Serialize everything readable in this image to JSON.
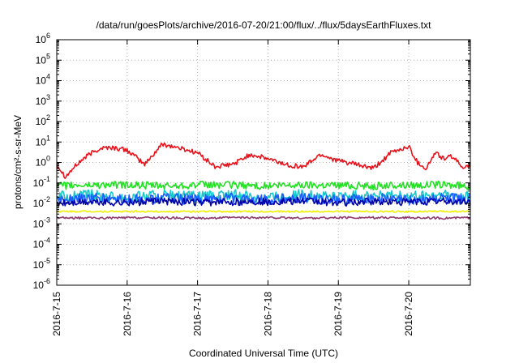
{
  "chart_data": {
    "type": "line",
    "title": "/data/run/goesPlots/archive/2016-07-20/21:00/flux/../flux/5daysEarthFluxes.txt",
    "xlabel": "Coordinated Universal Time (UTC)",
    "ylabel": "protons/cm²-s-sr-MeV",
    "y_scale": "log",
    "ylim": [
      "1e-6",
      "1e6"
    ],
    "y_ticks": [
      {
        "base": "10",
        "exp": "-6"
      },
      {
        "base": "10",
        "exp": "-5"
      },
      {
        "base": "10",
        "exp": "-4"
      },
      {
        "base": "10",
        "exp": "-3"
      },
      {
        "base": "10",
        "exp": "-2"
      },
      {
        "base": "10",
        "exp": "-1"
      },
      {
        "base": "10",
        "exp": "0"
      },
      {
        "base": "10",
        "exp": "1"
      },
      {
        "base": "10",
        "exp": "2"
      },
      {
        "base": "10",
        "exp": "3"
      },
      {
        "base": "10",
        "exp": "4"
      },
      {
        "base": "10",
        "exp": "5"
      },
      {
        "base": "10",
        "exp": "6"
      }
    ],
    "xlim": [
      "2016-07-15",
      "2016-07-20T21:00"
    ],
    "x_ticks": [
      "2016-7-15",
      "2016-7-16",
      "2016-7-17",
      "2016-7-18",
      "2016-7-19",
      "2016-7-20"
    ],
    "grid": true,
    "series": [
      {
        "color": "#e8121b",
        "x": [
          "2016-07-15T00:00",
          "2016-07-15T03:00",
          "2016-07-15T06:00",
          "2016-07-15T09:00",
          "2016-07-15T12:00",
          "2016-07-15T15:00",
          "2016-07-15T18:00",
          "2016-07-16T00:00",
          "2016-07-16T06:00",
          "2016-07-16T12:00",
          "2016-07-16T18:00",
          "2016-07-17T00:00",
          "2016-07-17T06:00",
          "2016-07-17T12:00",
          "2016-07-17T18:00",
          "2016-07-18T00:00",
          "2016-07-18T06:00",
          "2016-07-18T12:00",
          "2016-07-18T18:00",
          "2016-07-19T00:00",
          "2016-07-19T06:00",
          "2016-07-19T12:00",
          "2016-07-19T18:00",
          "2016-07-20T00:00",
          "2016-07-20T03:00",
          "2016-07-20T06:00",
          "2016-07-20T09:00",
          "2016-07-20T12:00",
          "2016-07-20T15:00",
          "2016-07-20T18:00",
          "2016-07-20T21:00"
        ],
        "values": [
          0.8,
          0.2,
          0.6,
          1.5,
          3.0,
          5.0,
          5.5,
          4.0,
          0.8,
          8.0,
          5.0,
          3.0,
          0.6,
          0.8,
          2.5,
          1.5,
          0.8,
          0.6,
          2.5,
          1.2,
          0.8,
          0.5,
          3.0,
          6.0,
          1.0,
          0.5,
          3.0,
          1.5,
          2.0,
          0.6,
          0.8
        ]
      },
      {
        "color": "#22e022",
        "x": [
          "2016-07-15T00:00",
          "2016-07-15T12:00",
          "2016-07-16T00:00",
          "2016-07-16T12:00",
          "2016-07-17T00:00",
          "2016-07-17T12:00",
          "2016-07-18T00:00",
          "2016-07-18T12:00",
          "2016-07-19T00:00",
          "2016-07-19T12:00",
          "2016-07-20T00:00",
          "2016-07-20T12:00",
          "2016-07-20T21:00"
        ],
        "values": [
          0.07,
          0.08,
          0.08,
          0.07,
          0.08,
          0.08,
          0.07,
          0.08,
          0.08,
          0.07,
          0.08,
          0.08,
          0.07
        ]
      },
      {
        "color": "#18c8c8",
        "x": [
          "2016-07-15T00:00",
          "2016-07-15T12:00",
          "2016-07-16T00:00",
          "2016-07-16T12:00",
          "2016-07-17T00:00",
          "2016-07-17T12:00",
          "2016-07-18T00:00",
          "2016-07-18T12:00",
          "2016-07-19T00:00",
          "2016-07-19T12:00",
          "2016-07-20T00:00",
          "2016-07-20T12:00",
          "2016-07-20T21:00"
        ],
        "values": [
          0.02,
          0.025,
          0.02,
          0.025,
          0.02,
          0.025,
          0.02,
          0.025,
          0.02,
          0.025,
          0.02,
          0.025,
          0.02
        ]
      },
      {
        "color": "#1a5cff",
        "x": [
          "2016-07-15T00:00",
          "2016-07-15T12:00",
          "2016-07-16T00:00",
          "2016-07-16T12:00",
          "2016-07-17T00:00",
          "2016-07-17T12:00",
          "2016-07-18T00:00",
          "2016-07-18T12:00",
          "2016-07-19T00:00",
          "2016-07-19T12:00",
          "2016-07-20T00:00",
          "2016-07-20T12:00",
          "2016-07-20T21:00"
        ],
        "values": [
          0.015,
          0.018,
          0.015,
          0.018,
          0.015,
          0.018,
          0.015,
          0.018,
          0.015,
          0.018,
          0.015,
          0.018,
          0.015
        ]
      },
      {
        "color": "#0000a8",
        "x": [
          "2016-07-15T00:00",
          "2016-07-15T12:00",
          "2016-07-16T00:00",
          "2016-07-16T12:00",
          "2016-07-17T00:00",
          "2016-07-17T12:00",
          "2016-07-18T00:00",
          "2016-07-18T12:00",
          "2016-07-19T00:00",
          "2016-07-19T12:00",
          "2016-07-20T00:00",
          "2016-07-20T12:00",
          "2016-07-20T21:00"
        ],
        "values": [
          0.01,
          0.012,
          0.011,
          0.013,
          0.011,
          0.012,
          0.012,
          0.013,
          0.011,
          0.012,
          0.012,
          0.013,
          0.012
        ]
      },
      {
        "color": "#f0f000",
        "x": [
          "2016-07-15T00:00",
          "2016-07-15T12:00",
          "2016-07-16T00:00",
          "2016-07-16T12:00",
          "2016-07-17T00:00",
          "2016-07-17T12:00",
          "2016-07-18T00:00",
          "2016-07-18T12:00",
          "2016-07-19T00:00",
          "2016-07-19T12:00",
          "2016-07-20T00:00",
          "2016-07-20T12:00",
          "2016-07-20T21:00"
        ],
        "values": [
          0.004,
          0.004,
          0.004,
          0.004,
          0.004,
          0.004,
          0.004,
          0.004,
          0.004,
          0.004,
          0.004,
          0.004,
          0.004
        ]
      },
      {
        "color": "#8e3a6e",
        "x": [
          "2016-07-15T00:00",
          "2016-07-15T12:00",
          "2016-07-16T00:00",
          "2016-07-16T12:00",
          "2016-07-17T00:00",
          "2016-07-17T12:00",
          "2016-07-18T00:00",
          "2016-07-18T12:00",
          "2016-07-19T00:00",
          "2016-07-19T12:00",
          "2016-07-20T00:00",
          "2016-07-20T12:00",
          "2016-07-20T21:00"
        ],
        "values": [
          0.002,
          0.0019,
          0.002,
          0.002,
          0.0019,
          0.002,
          0.002,
          0.0019,
          0.002,
          0.002,
          0.002,
          0.0019,
          0.002
        ]
      }
    ]
  }
}
